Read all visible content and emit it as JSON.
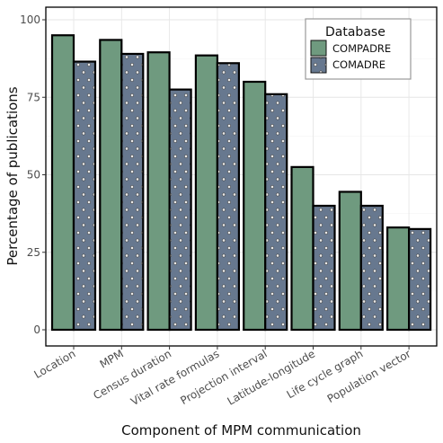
{
  "chart_data": {
    "type": "bar",
    "title": "",
    "xlabel": "Component of MPM communication",
    "ylabel": "Percentage of publications",
    "ylim": [
      0,
      105
    ],
    "yticks": [
      0,
      25,
      50,
      75,
      100
    ],
    "grid": true,
    "legend_title": "Database",
    "legend_position": "top-right",
    "categories": [
      "Location",
      "MPM",
      "Census duration",
      "Vital rate formulas",
      "Projection interval",
      "Latitude-longitude",
      "Life cycle graph",
      "Population vector"
    ],
    "series": [
      {
        "name": "COMPADRE",
        "color": "#6f9a7f",
        "pattern": "none",
        "values": [
          95,
          93.5,
          89.5,
          88.5,
          80,
          52.5,
          44.5,
          33
        ]
      },
      {
        "name": "COMADRE",
        "color": "#67788f",
        "pattern": "dots",
        "values": [
          86.5,
          89,
          77.5,
          86,
          76,
          40,
          40,
          32.5
        ]
      }
    ]
  }
}
